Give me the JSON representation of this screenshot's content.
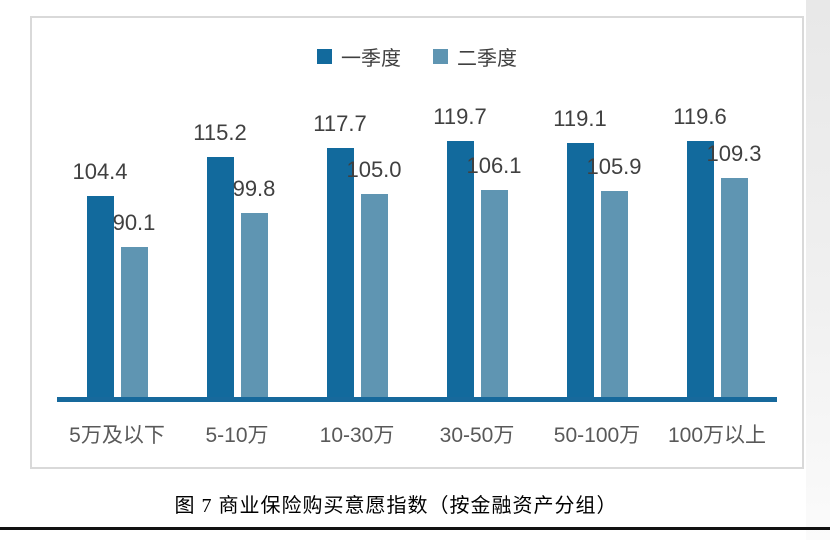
{
  "chart_data": {
    "type": "bar",
    "title": "",
    "categories": [
      "5万及以下",
      "5-10万",
      "10-30万",
      "30-50万",
      "50-100万",
      "100万以上"
    ],
    "series": [
      {
        "name": "一季度",
        "color": "#126a9d",
        "values": [
          104.4,
          115.2,
          117.7,
          119.7,
          119.1,
          119.6
        ]
      },
      {
        "name": "二季度",
        "color": "#5f95b2",
        "values": [
          90.1,
          99.8,
          105.0,
          106.1,
          105.9,
          109.3
        ]
      }
    ],
    "value_labels": true,
    "value_label_decimals": 1,
    "legend_position": "top",
    "grid": false,
    "y_axis_visible": false,
    "ylim": [
      48.5,
      125
    ]
  },
  "caption": "图 7 商业保险购买意愿指数（按金融资产分组）",
  "colors": {
    "axis_line": "#17699c",
    "frame_border": "#d9d9d9",
    "value_label_text": "#404040",
    "category_text": "#595959"
  }
}
